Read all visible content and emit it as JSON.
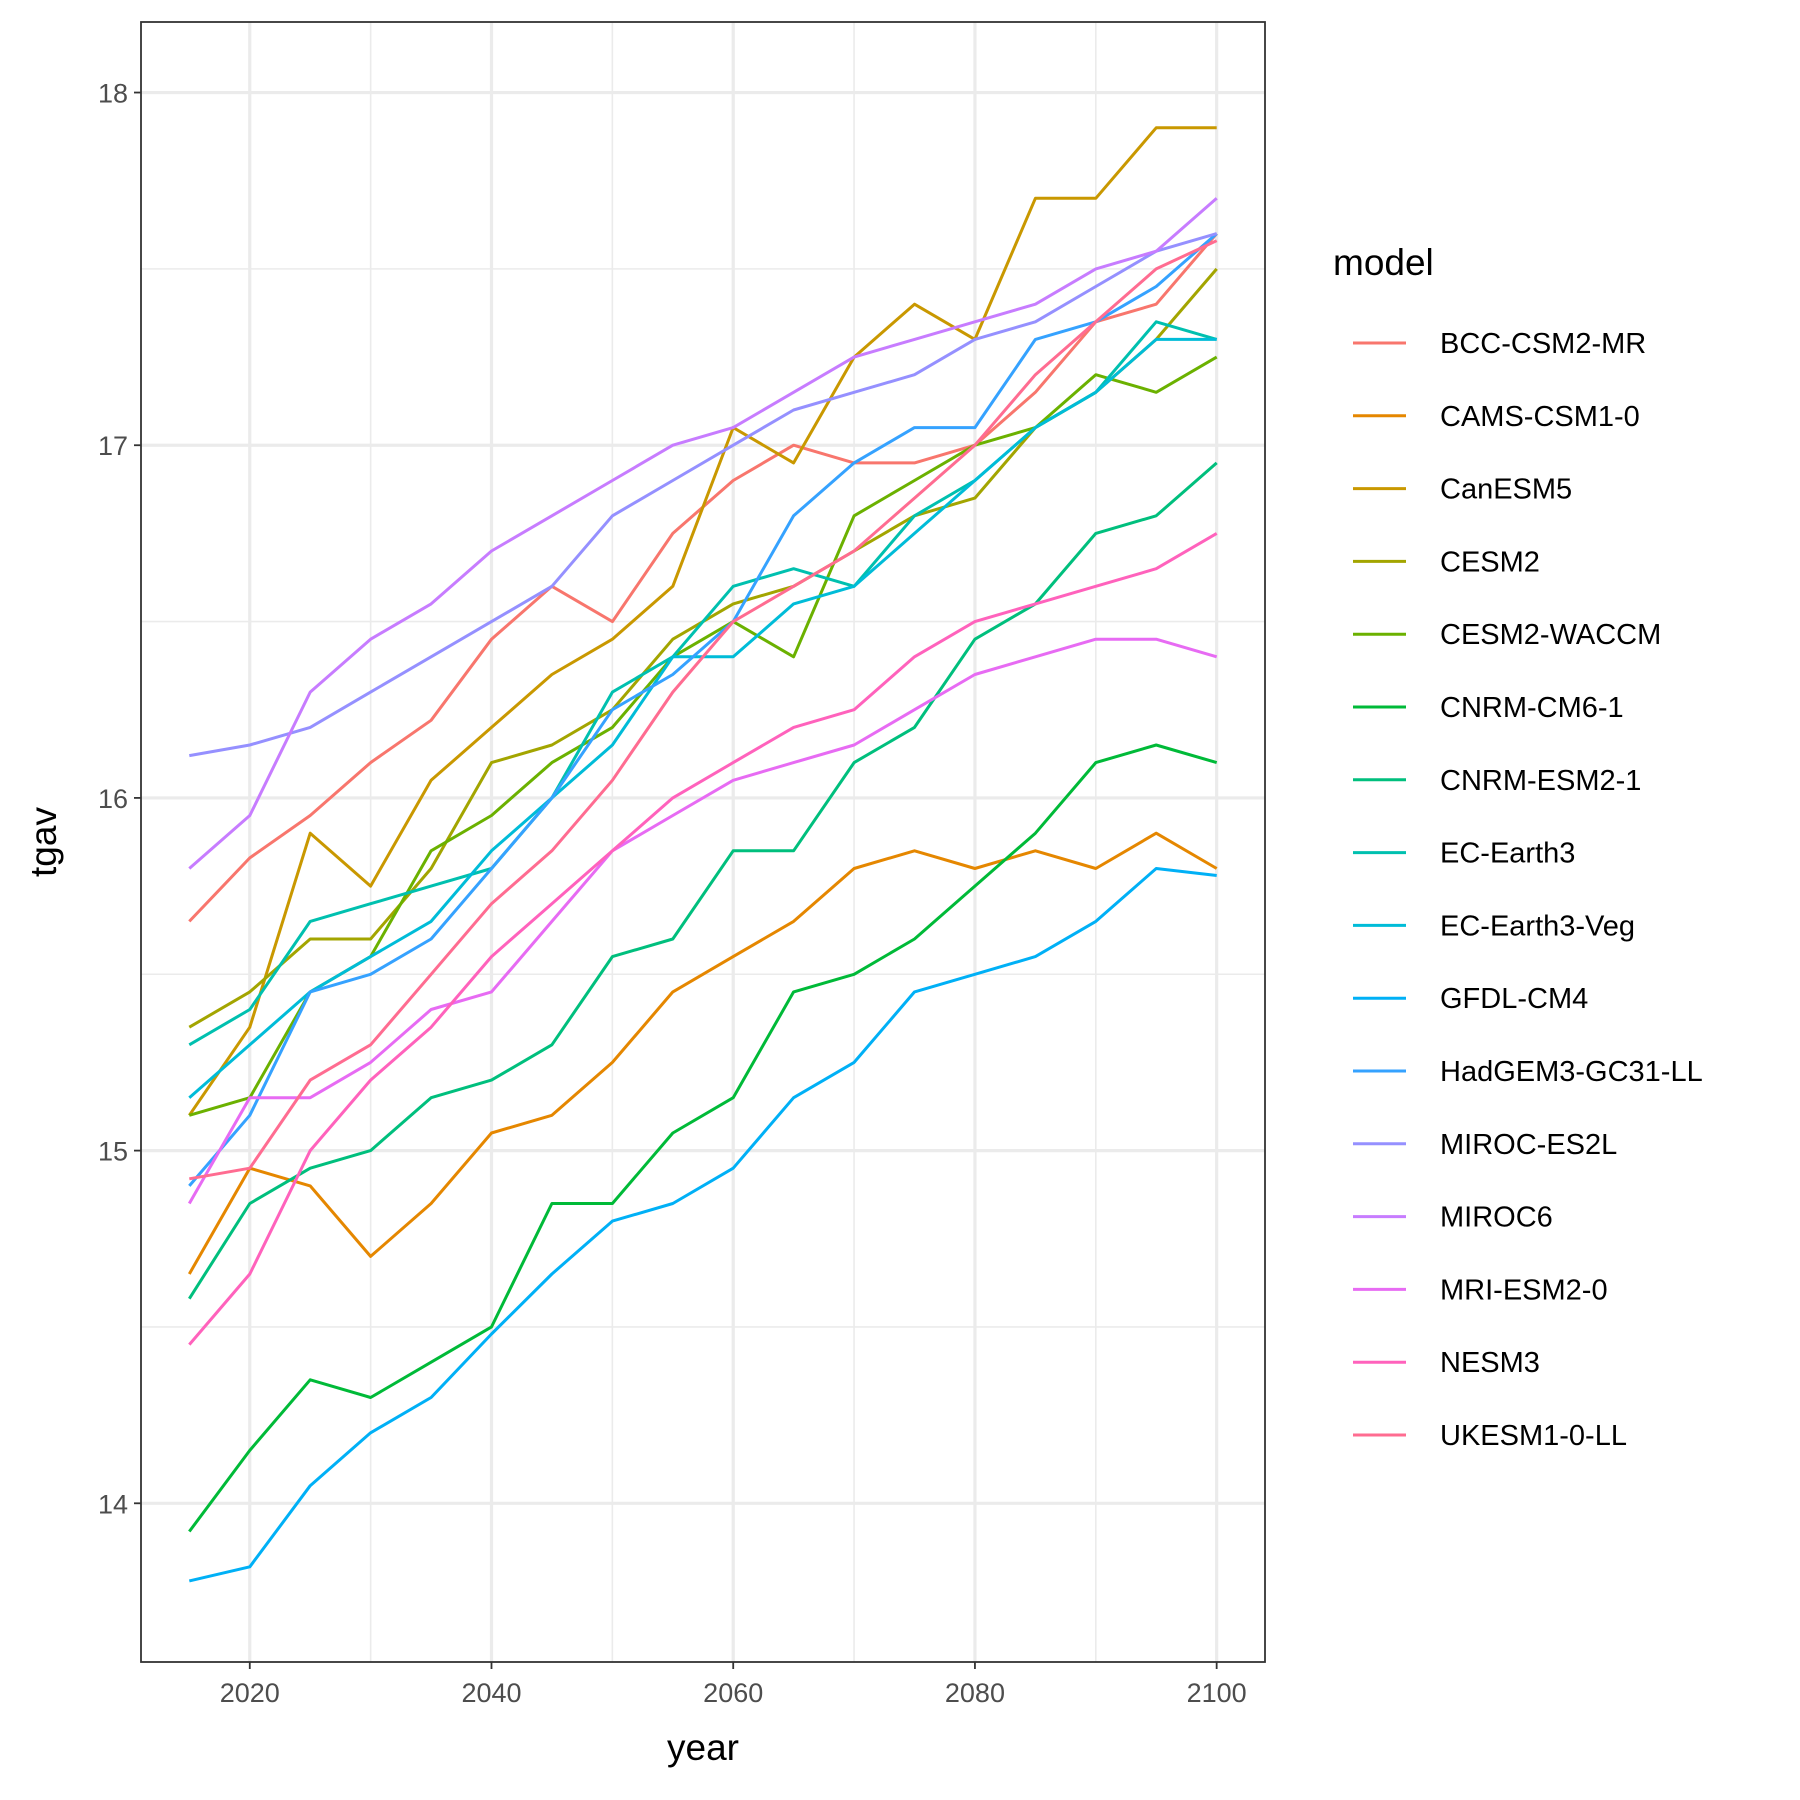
{
  "chart_data": {
    "type": "line",
    "xlabel": "year",
    "ylabel": "tgav",
    "xlim": [
      2011,
      2104
    ],
    "ylim": [
      13.55,
      18.2
    ],
    "x_ticks": [
      2020,
      2040,
      2060,
      2080,
      2100
    ],
    "x_tick_labels": [
      "2020",
      "2040",
      "2060",
      "2080",
      "2100"
    ],
    "y_ticks": [
      14,
      15,
      16,
      17,
      18
    ],
    "y_tick_labels": [
      "14",
      "15",
      "16",
      "17",
      "18"
    ],
    "grid": true,
    "legend_title": "model",
    "legend_position": "right",
    "x": [
      2015,
      2020,
      2025,
      2030,
      2035,
      2040,
      2045,
      2050,
      2055,
      2060,
      2065,
      2070,
      2075,
      2080,
      2085,
      2090,
      2095,
      2100
    ],
    "series": [
      {
        "name": "BCC-CSM2-MR",
        "color": "#F8766D",
        "values": [
          15.65,
          15.83,
          15.95,
          16.1,
          16.22,
          16.45,
          16.6,
          16.5,
          16.75,
          16.9,
          17.0,
          16.95,
          16.95,
          17.0,
          17.15,
          17.35,
          17.4,
          17.6
        ]
      },
      {
        "name": "CAMS-CSM1-0",
        "color": "#E58700",
        "values": [
          14.65,
          14.95,
          14.9,
          14.7,
          14.85,
          15.05,
          15.1,
          15.25,
          15.45,
          15.55,
          15.65,
          15.8,
          15.85,
          15.8,
          15.85,
          15.8,
          15.9,
          15.8
        ]
      },
      {
        "name": "CanESM5",
        "color": "#C99800",
        "values": [
          15.1,
          15.35,
          15.9,
          15.75,
          16.05,
          16.2,
          16.35,
          16.45,
          16.6,
          17.05,
          16.95,
          17.25,
          17.4,
          17.3,
          17.7,
          17.7,
          17.9,
          17.9
        ]
      },
      {
        "name": "CESM2",
        "color": "#A3A500",
        "values": [
          15.35,
          15.45,
          15.6,
          15.6,
          15.8,
          16.1,
          16.15,
          16.25,
          16.45,
          16.55,
          16.6,
          16.7,
          16.8,
          16.85,
          17.05,
          17.15,
          17.3,
          17.5
        ]
      },
      {
        "name": "CESM2-WACCM",
        "color": "#6BB100",
        "values": [
          15.1,
          15.15,
          15.45,
          15.55,
          15.85,
          15.95,
          16.1,
          16.2,
          16.4,
          16.5,
          16.4,
          16.8,
          16.9,
          17.0,
          17.05,
          17.2,
          17.15,
          17.25
        ]
      },
      {
        "name": "CNRM-CM6-1",
        "color": "#00BA38",
        "values": [
          13.92,
          14.15,
          14.35,
          14.3,
          14.4,
          14.5,
          14.85,
          14.85,
          15.05,
          15.15,
          15.45,
          15.5,
          15.6,
          15.75,
          15.9,
          16.1,
          16.15,
          16.1
        ]
      },
      {
        "name": "CNRM-ESM2-1",
        "color": "#00BF7D",
        "values": [
          14.58,
          14.85,
          14.95,
          15.0,
          15.15,
          15.2,
          15.3,
          15.55,
          15.6,
          15.85,
          15.85,
          16.1,
          16.2,
          16.45,
          16.55,
          16.75,
          16.8,
          16.95
        ]
      },
      {
        "name": "EC-Earth3",
        "color": "#00C0AF",
        "values": [
          15.3,
          15.4,
          15.65,
          15.7,
          15.75,
          15.8,
          16.0,
          16.3,
          16.4,
          16.6,
          16.65,
          16.6,
          16.8,
          16.9,
          17.05,
          17.15,
          17.35,
          17.3
        ]
      },
      {
        "name": "EC-Earth3-Veg",
        "color": "#00BCD8",
        "values": [
          15.15,
          15.3,
          15.45,
          15.55,
          15.65,
          15.85,
          16.0,
          16.15,
          16.4,
          16.4,
          16.55,
          16.6,
          16.75,
          16.9,
          17.05,
          17.15,
          17.3,
          17.3
        ]
      },
      {
        "name": "GFDL-CM4",
        "color": "#00B0F6",
        "values": [
          13.78,
          13.82,
          14.05,
          14.2,
          14.3,
          14.48,
          14.65,
          14.8,
          14.85,
          14.95,
          15.15,
          15.25,
          15.45,
          15.5,
          15.55,
          15.65,
          15.8,
          15.78
        ]
      },
      {
        "name": "HadGEM3-GC31-LL",
        "color": "#35A2FF",
        "values": [
          14.9,
          15.1,
          15.45,
          15.5,
          15.6,
          15.8,
          16.0,
          16.25,
          16.35,
          16.5,
          16.8,
          16.95,
          17.05,
          17.05,
          17.3,
          17.35,
          17.45,
          17.6
        ]
      },
      {
        "name": "MIROC-ES2L",
        "color": "#9590FF",
        "values": [
          16.12,
          16.15,
          16.2,
          16.3,
          16.4,
          16.5,
          16.6,
          16.8,
          16.9,
          17.0,
          17.1,
          17.15,
          17.2,
          17.3,
          17.35,
          17.45,
          17.55,
          17.6
        ]
      },
      {
        "name": "MIROC6",
        "color": "#C77CFF",
        "values": [
          15.8,
          15.95,
          16.3,
          16.45,
          16.55,
          16.7,
          16.8,
          16.9,
          17.0,
          17.05,
          17.15,
          17.25,
          17.3,
          17.35,
          17.4,
          17.5,
          17.55,
          17.7
        ]
      },
      {
        "name": "MRI-ESM2-0",
        "color": "#E76BF3",
        "values": [
          14.85,
          15.15,
          15.15,
          15.25,
          15.4,
          15.45,
          15.65,
          15.85,
          15.95,
          16.05,
          16.1,
          16.15,
          16.25,
          16.35,
          16.4,
          16.45,
          16.45,
          16.4
        ]
      },
      {
        "name": "NESM3",
        "color": "#FF62BC",
        "values": [
          14.45,
          14.65,
          15.0,
          15.2,
          15.35,
          15.55,
          15.7,
          15.85,
          16.0,
          16.1,
          16.2,
          16.25,
          16.4,
          16.5,
          16.55,
          16.6,
          16.65,
          16.75
        ]
      },
      {
        "name": "UKESM1-0-LL",
        "color": "#FF6C91",
        "values": [
          14.92,
          14.95,
          15.2,
          15.3,
          15.5,
          15.7,
          15.85,
          16.05,
          16.3,
          16.5,
          16.6,
          16.7,
          16.85,
          17.0,
          17.2,
          17.35,
          17.5,
          17.58
        ]
      }
    ]
  }
}
